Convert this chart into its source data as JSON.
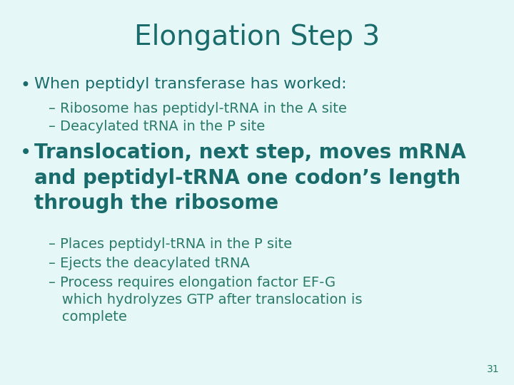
{
  "title": "Elongation Step 3",
  "title_color": "#1a6b6b",
  "title_fontsize": 28,
  "title_fontweight": "normal",
  "background_color": "#e6f7f7",
  "text_color_teal": "#1a6b6b",
  "text_color_sub": "#2a7a6a",
  "slide_number": "31",
  "bullet1_header": "When peptidyl transferase has worked:",
  "bullet1_sub1": "– Ribosome has peptidyl-tRNA in the A site",
  "bullet1_sub2": "– Deacylated tRNA in the P site",
  "bullet2_header": "Translocation, next step, moves mRNA\nand peptidyl-tRNA one codon’s length\nthrough the ribosome",
  "bullet2_sub1": "– Places peptidyl-tRNA in the P site",
  "bullet2_sub2": "– Ejects the deacylated tRNA",
  "bullet2_sub3a": "– Process requires elongation factor EF-G",
  "bullet2_sub3b": "   which hydrolyzes GTP after translocation is",
  "bullet2_sub3c": "   complete"
}
